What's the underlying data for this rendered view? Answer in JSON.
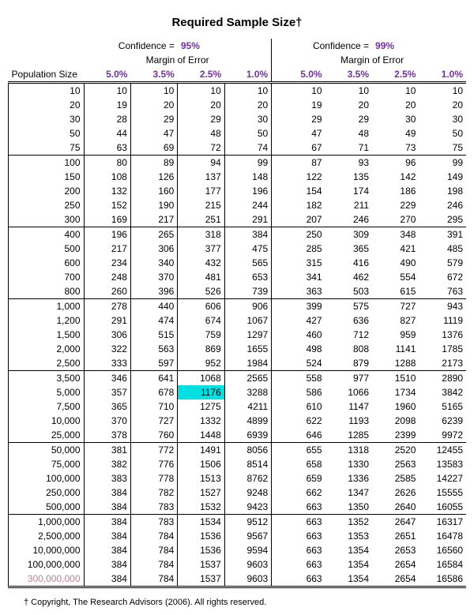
{
  "title": "Required Sample Size†",
  "confidence_label": "Confidence =",
  "confidence_values": [
    "95%",
    "99%"
  ],
  "margin_label": "Margin of Error",
  "pop_label": "Population Size",
  "margin_headers": [
    "5.0%",
    "3.5%",
    "2.5%",
    "1.0%"
  ],
  "highlight": {
    "row": 21,
    "col": 4
  },
  "groups": [
    {
      "rows": [
        {
          "pop": "10",
          "a": [
            "10",
            "10",
            "10",
            "10"
          ],
          "b": [
            "10",
            "10",
            "10",
            "10"
          ]
        },
        {
          "pop": "20",
          "a": [
            "19",
            "20",
            "20",
            "20"
          ],
          "b": [
            "19",
            "20",
            "20",
            "20"
          ]
        },
        {
          "pop": "30",
          "a": [
            "28",
            "29",
            "29",
            "30"
          ],
          "b": [
            "29",
            "29",
            "30",
            "30"
          ]
        },
        {
          "pop": "50",
          "a": [
            "44",
            "47",
            "48",
            "50"
          ],
          "b": [
            "47",
            "48",
            "49",
            "50"
          ]
        },
        {
          "pop": "75",
          "a": [
            "63",
            "69",
            "72",
            "74"
          ],
          "b": [
            "67",
            "71",
            "73",
            "75"
          ]
        }
      ]
    },
    {
      "rows": [
        {
          "pop": "100",
          "a": [
            "80",
            "89",
            "94",
            "99"
          ],
          "b": [
            "87",
            "93",
            "96",
            "99"
          ]
        },
        {
          "pop": "150",
          "a": [
            "108",
            "126",
            "137",
            "148"
          ],
          "b": [
            "122",
            "135",
            "142",
            "149"
          ]
        },
        {
          "pop": "200",
          "a": [
            "132",
            "160",
            "177",
            "196"
          ],
          "b": [
            "154",
            "174",
            "186",
            "198"
          ]
        },
        {
          "pop": "250",
          "a": [
            "152",
            "190",
            "215",
            "244"
          ],
          "b": [
            "182",
            "211",
            "229",
            "246"
          ]
        },
        {
          "pop": "300",
          "a": [
            "169",
            "217",
            "251",
            "291"
          ],
          "b": [
            "207",
            "246",
            "270",
            "295"
          ]
        }
      ]
    },
    {
      "rows": [
        {
          "pop": "400",
          "a": [
            "196",
            "265",
            "318",
            "384"
          ],
          "b": [
            "250",
            "309",
            "348",
            "391"
          ]
        },
        {
          "pop": "500",
          "a": [
            "217",
            "306",
            "377",
            "475"
          ],
          "b": [
            "285",
            "365",
            "421",
            "485"
          ]
        },
        {
          "pop": "600",
          "a": [
            "234",
            "340",
            "432",
            "565"
          ],
          "b": [
            "315",
            "416",
            "490",
            "579"
          ]
        },
        {
          "pop": "700",
          "a": [
            "248",
            "370",
            "481",
            "653"
          ],
          "b": [
            "341",
            "462",
            "554",
            "672"
          ]
        },
        {
          "pop": "800",
          "a": [
            "260",
            "396",
            "526",
            "739"
          ],
          "b": [
            "363",
            "503",
            "615",
            "763"
          ]
        }
      ]
    },
    {
      "rows": [
        {
          "pop": "1,000",
          "a": [
            "278",
            "440",
            "606",
            "906"
          ],
          "b": [
            "399",
            "575",
            "727",
            "943"
          ]
        },
        {
          "pop": "1,200",
          "a": [
            "291",
            "474",
            "674",
            "1067"
          ],
          "b": [
            "427",
            "636",
            "827",
            "1119"
          ]
        },
        {
          "pop": "1,500",
          "a": [
            "306",
            "515",
            "759",
            "1297"
          ],
          "b": [
            "460",
            "712",
            "959",
            "1376"
          ]
        },
        {
          "pop": "2,000",
          "a": [
            "322",
            "563",
            "869",
            "1655"
          ],
          "b": [
            "498",
            "808",
            "1141",
            "1785"
          ]
        },
        {
          "pop": "2,500",
          "a": [
            "333",
            "597",
            "952",
            "1984"
          ],
          "b": [
            "524",
            "879",
            "1288",
            "2173"
          ]
        }
      ]
    },
    {
      "rows": [
        {
          "pop": "3,500",
          "a": [
            "346",
            "641",
            "1068",
            "2565"
          ],
          "b": [
            "558",
            "977",
            "1510",
            "2890"
          ]
        },
        {
          "pop": "5,000",
          "a": [
            "357",
            "678",
            "1176",
            "3288"
          ],
          "b": [
            "586",
            "1066",
            "1734",
            "3842"
          ]
        },
        {
          "pop": "7,500",
          "a": [
            "365",
            "710",
            "1275",
            "4211"
          ],
          "b": [
            "610",
            "1147",
            "1960",
            "5165"
          ]
        },
        {
          "pop": "10,000",
          "a": [
            "370",
            "727",
            "1332",
            "4899"
          ],
          "b": [
            "622",
            "1193",
            "2098",
            "6239"
          ]
        },
        {
          "pop": "25,000",
          "a": [
            "378",
            "760",
            "1448",
            "6939"
          ],
          "b": [
            "646",
            "1285",
            "2399",
            "9972"
          ]
        }
      ]
    },
    {
      "rows": [
        {
          "pop": "50,000",
          "a": [
            "381",
            "772",
            "1491",
            "8056"
          ],
          "b": [
            "655",
            "1318",
            "2520",
            "12455"
          ]
        },
        {
          "pop": "75,000",
          "a": [
            "382",
            "776",
            "1506",
            "8514"
          ],
          "b": [
            "658",
            "1330",
            "2563",
            "13583"
          ]
        },
        {
          "pop": "100,000",
          "a": [
            "383",
            "778",
            "1513",
            "8762"
          ],
          "b": [
            "659",
            "1336",
            "2585",
            "14227"
          ]
        },
        {
          "pop": "250,000",
          "a": [
            "384",
            "782",
            "1527",
            "9248"
          ],
          "b": [
            "662",
            "1347",
            "2626",
            "15555"
          ]
        },
        {
          "pop": "500,000",
          "a": [
            "384",
            "783",
            "1532",
            "9423"
          ],
          "b": [
            "663",
            "1350",
            "2640",
            "16055"
          ]
        }
      ]
    },
    {
      "rows": [
        {
          "pop": "1,000,000",
          "a": [
            "384",
            "783",
            "1534",
            "9512"
          ],
          "b": [
            "663",
            "1352",
            "2647",
            "16317"
          ]
        },
        {
          "pop": "2,500,000",
          "a": [
            "384",
            "784",
            "1536",
            "9567"
          ],
          "b": [
            "663",
            "1353",
            "2651",
            "16478"
          ]
        },
        {
          "pop": "10,000,000",
          "a": [
            "384",
            "784",
            "1536",
            "9594"
          ],
          "b": [
            "663",
            "1354",
            "2653",
            "16560"
          ]
        },
        {
          "pop": "100,000,000",
          "a": [
            "384",
            "784",
            "1537",
            "9603"
          ],
          "b": [
            "663",
            "1354",
            "2654",
            "16584"
          ]
        },
        {
          "pop": "300,000,000",
          "a": [
            "384",
            "784",
            "1537",
            "9603"
          ],
          "b": [
            "663",
            "1354",
            "2654",
            "16586"
          ],
          "pink": true
        }
      ]
    }
  ],
  "footer": "† Copyright, The Research Advisors (2006). All rights reserved.",
  "colors": {
    "accent": "#7030a0",
    "highlight": "#00e0e0",
    "pink": "#c08090"
  }
}
